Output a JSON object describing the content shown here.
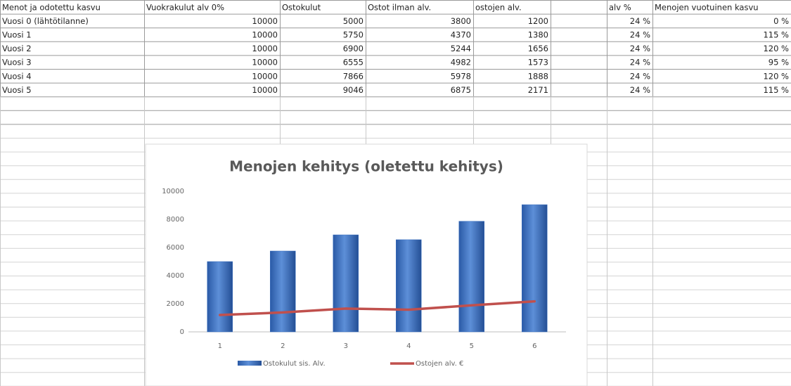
{
  "table": {
    "header": [
      "Menot ja odotettu kasvu",
      "Vuokrakulut alv 0%",
      "Ostokulut",
      "Ostot ilman alv.",
      "ostojen alv.",
      "alv %",
      "Menojen vuotuinen kasvu"
    ],
    "rows": [
      [
        "Vuosi 0 (lähtötilanne)",
        "10000",
        "5000",
        "3800",
        "1200",
        "24 %",
        "0 %"
      ],
      [
        "Vuosi 1",
        "10000",
        "5750",
        "4370",
        "1380",
        "24 %",
        "115 %"
      ],
      [
        "Vuosi 2",
        "10000",
        "6900",
        "5244",
        "1656",
        "24 %",
        "120 %"
      ],
      [
        "Vuosi 3",
        "10000",
        "6555",
        "4982",
        "1573",
        "24 %",
        "95 %"
      ],
      [
        "Vuosi 4",
        "10000",
        "7866",
        "5978",
        "1888",
        "24 %",
        "120 %"
      ],
      [
        "Vuosi 5",
        "10000",
        "9046",
        "6875",
        "2171",
        "24 %",
        "115 %"
      ]
    ]
  },
  "chart_data": {
    "type": "bar",
    "title": "Menojen kehitys (oletettu kehitys)",
    "categories": [
      "1",
      "2",
      "3",
      "4",
      "5",
      "6"
    ],
    "series": [
      {
        "name": "Ostokulut sis. Alv.",
        "type": "bar",
        "color": "#3b70c0",
        "values": [
          5000,
          5750,
          6900,
          6555,
          7866,
          9046
        ]
      },
      {
        "name": "Ostojen alv. €",
        "type": "line",
        "color": "#c0504d",
        "values": [
          1200,
          1380,
          1656,
          1573,
          1888,
          2171
        ]
      }
    ],
    "ylim": [
      0,
      10000
    ],
    "yticks": [
      0,
      2000,
      4000,
      6000,
      8000,
      10000
    ],
    "grid": false
  }
}
